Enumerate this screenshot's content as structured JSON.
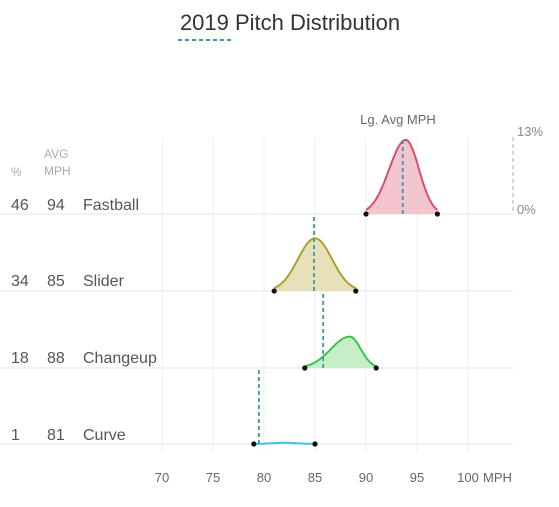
{
  "chart_data": {
    "type": "ridgeline",
    "title": "2019 Pitch Distribution",
    "reference_label": "Lg. Avg MPH",
    "headers": {
      "pct": "%",
      "avg": "AVG",
      "mph": "MPH"
    },
    "x": {
      "ticks": [
        70,
        75,
        80,
        85,
        90,
        95,
        100
      ],
      "unit": "MPH",
      "range": [
        65,
        102
      ]
    },
    "scale": {
      "top": "13%",
      "bottom": "0%"
    },
    "rows": [
      {
        "name": "Fastball",
        "pct": "46",
        "avg": "94",
        "min": 90,
        "max": 97,
        "peak": 93.9,
        "density_peak_pct": 12.5,
        "lg_avg": 93.6,
        "color": "#d4506e",
        "fill": "#f3c5cf"
      },
      {
        "name": "Slider",
        "pct": "34",
        "avg": "85",
        "min": 81,
        "max": 89,
        "peak": 85.0,
        "density_peak_pct": 8.9,
        "lg_avg": 84.9,
        "color": "#b0a030",
        "fill": "#e6e1b8"
      },
      {
        "name": "Changeup",
        "pct": "18",
        "avg": "88",
        "min": 84,
        "max": 91,
        "peak": 88.4,
        "density_peak_pct": 5.3,
        "lg_avg": 85.8,
        "color": "#3cc34e",
        "fill": "#c6efc9"
      },
      {
        "name": "Curve",
        "pct": "1",
        "avg": "81",
        "min": 79,
        "max": 85,
        "peak": 82.0,
        "density_peak_pct": 0.2,
        "lg_avg": 79.5,
        "color": "#44bfe6",
        "fill": "#cdeff9"
      }
    ],
    "accent": "#3a9aa3"
  }
}
